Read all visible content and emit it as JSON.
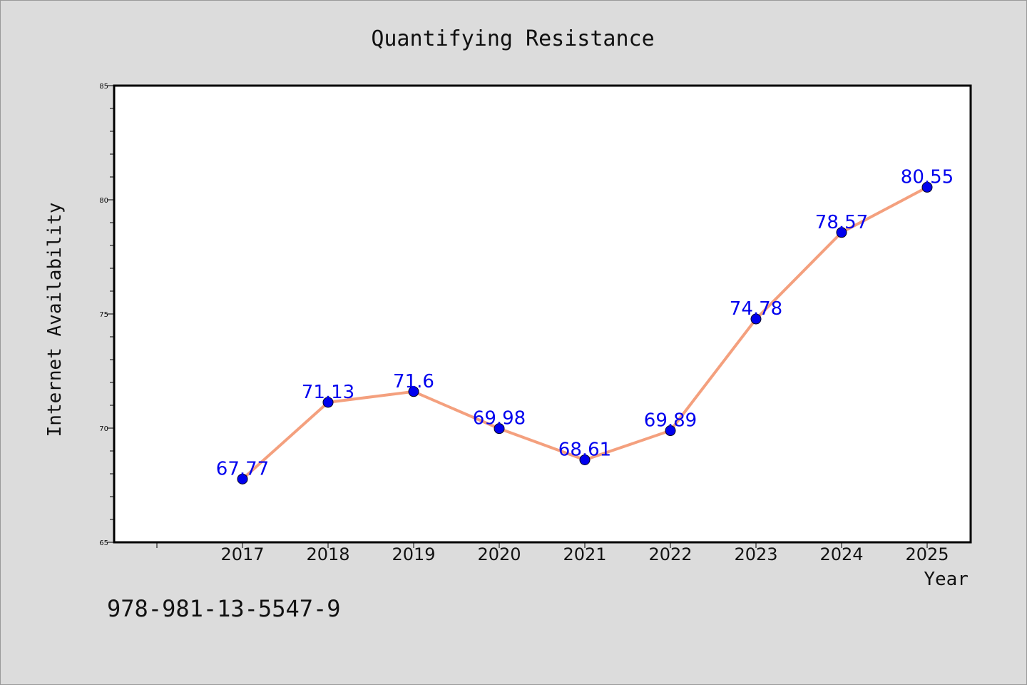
{
  "chart_data": {
    "type": "line",
    "title": "Quantifying Resistance",
    "xlabel": "Year",
    "ylabel": "Internet Availability",
    "categories": [
      "2017",
      "2018",
      "2019",
      "2020",
      "2021",
      "2022",
      "2023",
      "2024",
      "2025"
    ],
    "series": [
      {
        "values": [
          67.77,
          71.13,
          71.6,
          69.98,
          68.61,
          69.89,
          74.78,
          78.57,
          80.55
        ],
        "data_labels": [
          "67.77",
          "71.13",
          "71.6",
          "69.98",
          "68.61",
          "69.89",
          "74.78",
          "78.57",
          "80.55"
        ]
      }
    ],
    "ylim": [
      65,
      85
    ],
    "yticks": [
      "65",
      "70",
      "75",
      "80",
      "85"
    ],
    "grid": false,
    "legend": "none",
    "colors": {
      "line": "#f4a07e",
      "marker": "#0000ee",
      "data_label": "#0000ee",
      "plot_background": "#ffffff",
      "page_background": "#dcdcdc"
    }
  },
  "footer": {
    "isbn": "978-981-13-5547-9"
  }
}
